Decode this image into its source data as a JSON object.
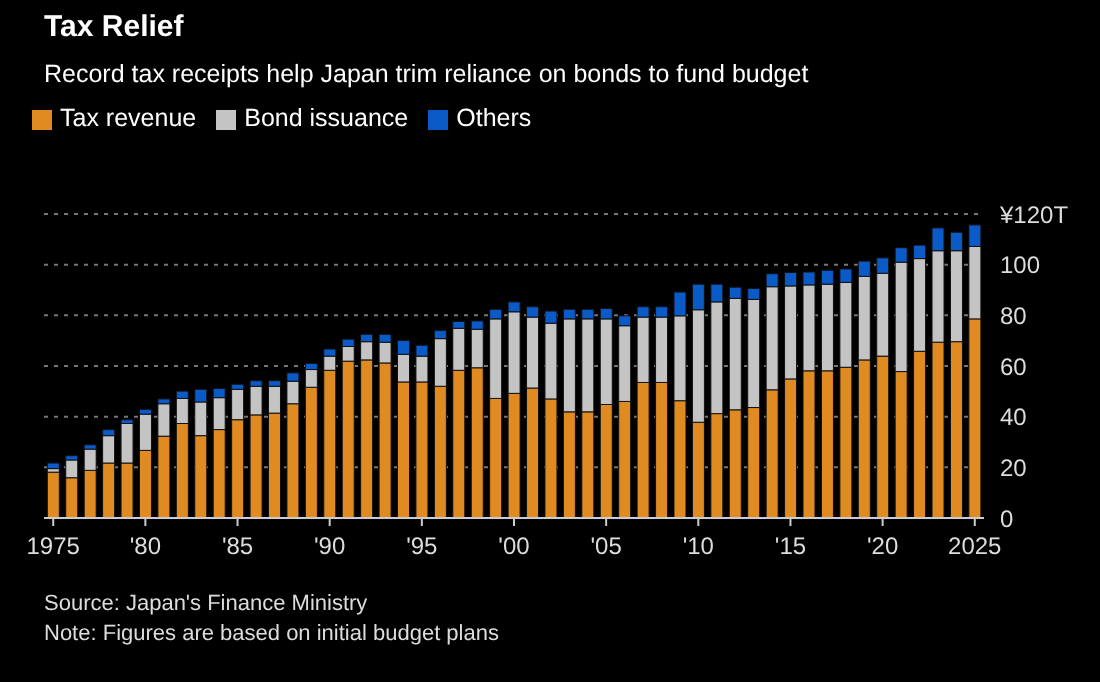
{
  "chart_data": {
    "type": "bar",
    "title": "Tax Relief",
    "subtitle": "Record tax receipts help Japan trim reliance on bonds to fund budget",
    "categories": [
      "1975",
      null,
      null,
      null,
      null,
      "'80",
      null,
      null,
      null,
      null,
      "'85",
      null,
      null,
      null,
      null,
      "'90",
      null,
      null,
      null,
      null,
      "'95",
      null,
      null,
      null,
      null,
      "'00",
      null,
      null,
      null,
      null,
      "'05",
      null,
      null,
      null,
      null,
      "'10",
      null,
      null,
      null,
      null,
      "'15",
      null,
      null,
      null,
      null,
      "'20",
      null,
      null,
      null,
      null,
      "2025"
    ],
    "series": [
      {
        "name": "Tax revenue",
        "color": "#e08a22",
        "values": [
          18.1,
          15.9,
          18.8,
          21.7,
          21.7,
          26.7,
          32.3,
          37.3,
          32.5,
          34.9,
          38.8,
          40.7,
          41.4,
          45.1,
          51.6,
          58.3,
          61.9,
          62.4,
          61.2,
          53.7,
          53.7,
          52.0,
          58.3,
          59.3,
          47.2,
          49.2,
          51.3,
          47.0,
          41.9,
          41.9,
          44.8,
          46.0,
          53.5,
          53.5,
          46.3,
          37.8,
          41.2,
          42.7,
          43.6,
          50.6,
          54.9,
          58.1,
          58.1,
          59.5,
          62.4,
          63.9,
          57.8,
          65.8,
          69.4,
          69.6,
          78.6
        ]
      },
      {
        "name": "Bond issuance",
        "color": "#c4c4c4",
        "values": [
          1.4,
          7.0,
          8.4,
          10.8,
          15.6,
          14.3,
          12.8,
          9.9,
          13.3,
          12.6,
          12.0,
          11.3,
          10.6,
          8.9,
          7.0,
          5.6,
          5.8,
          7.2,
          8.2,
          10.9,
          10.2,
          18.8,
          16.6,
          15.2,
          31.4,
          32.2,
          28.0,
          29.9,
          36.7,
          36.7,
          33.8,
          29.9,
          25.8,
          25.8,
          33.5,
          44.4,
          44.1,
          44.0,
          42.7,
          40.7,
          36.7,
          33.9,
          34.2,
          33.5,
          33.0,
          32.7,
          43.2,
          36.6,
          36.1,
          35.9,
          28.6
        ]
      },
      {
        "name": "Others",
        "color": "#0a5ac8",
        "values": [
          2.2,
          1.7,
          1.7,
          2.4,
          1.5,
          1.9,
          1.9,
          2.9,
          5.0,
          3.6,
          2.0,
          2.2,
          2.2,
          3.3,
          2.4,
          2.8,
          2.9,
          2.9,
          3.1,
          5.5,
          4.3,
          3.2,
          2.7,
          3.3,
          3.8,
          3.9,
          4.1,
          4.8,
          3.8,
          3.8,
          4.1,
          3.9,
          4.1,
          4.1,
          9.4,
          10.1,
          7.0,
          4.4,
          4.3,
          5.1,
          5.3,
          5.1,
          5.5,
          5.3,
          6.0,
          6.1,
          5.7,
          5.3,
          9.0,
          7.3,
          8.5
        ]
      }
    ],
    "stacked": true,
    "ylim": [
      0,
      120
    ],
    "yticks": [
      0,
      20,
      40,
      60,
      80,
      100,
      {
        "value": 120,
        "label": "¥120T"
      }
    ],
    "grid": "y",
    "legend": "top left",
    "annotations": [
      "Source: Japan's Finance Ministry",
      "Note: Figures are based on initial budget plans"
    ]
  }
}
